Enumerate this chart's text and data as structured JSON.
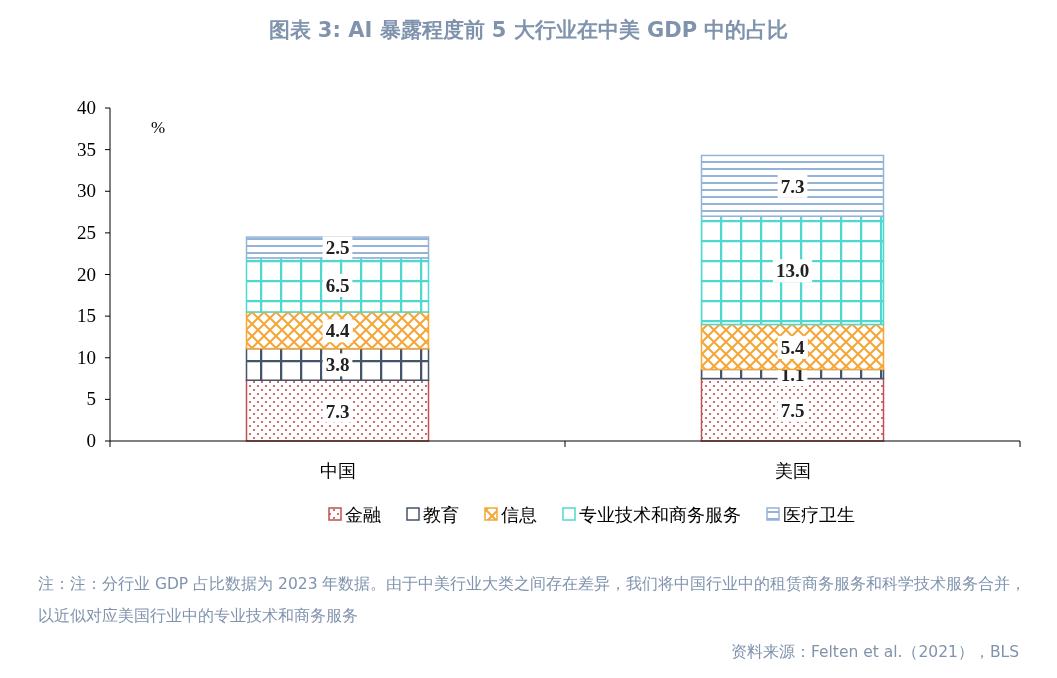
{
  "chart_data": {
    "type": "bar",
    "stacked": true,
    "title": "图表 3: AI 暴露程度前 5 大行业在中美 GDP 中的占比",
    "ylabel": "%",
    "categories": [
      "中国",
      "美国"
    ],
    "ylim": [
      0,
      40
    ],
    "yticks": [
      0,
      5,
      10,
      15,
      20,
      25,
      30,
      35,
      40
    ],
    "legend": "bottom",
    "series": [
      {
        "name": "金融",
        "color": "#c0504d",
        "values": [
          7.3,
          7.5
        ],
        "value_labels": [
          "7.3",
          "7.5"
        ]
      },
      {
        "name": "教育",
        "color": "#44546a",
        "values": [
          3.8,
          1.1
        ],
        "value_labels": [
          "3.8",
          "1.1"
        ]
      },
      {
        "name": "信息",
        "color": "#f5a636",
        "values": [
          4.4,
          5.4
        ],
        "value_labels": [
          "4.4",
          "5.4"
        ]
      },
      {
        "name": "专业技术和商务服务",
        "color": "#4fd8d0",
        "values": [
          6.5,
          13.0
        ],
        "value_labels": [
          "6.5",
          "13.0"
        ]
      },
      {
        "name": "医疗卫生",
        "color": "#95b3d7",
        "values": [
          2.5,
          7.3
        ],
        "value_labels": [
          "2.5",
          "7.3"
        ]
      }
    ],
    "annotations": [
      "注：注：分行业 GDP 占比数据为 2023 年数据。由于中美行业大类之间存在差异，我们将中国行业中的租赁商务服务和科学技术服务合并，以近似对应美国行业中的专业技术和商务服务",
      "资料来源：Felten et al.（2021），BLS"
    ]
  }
}
